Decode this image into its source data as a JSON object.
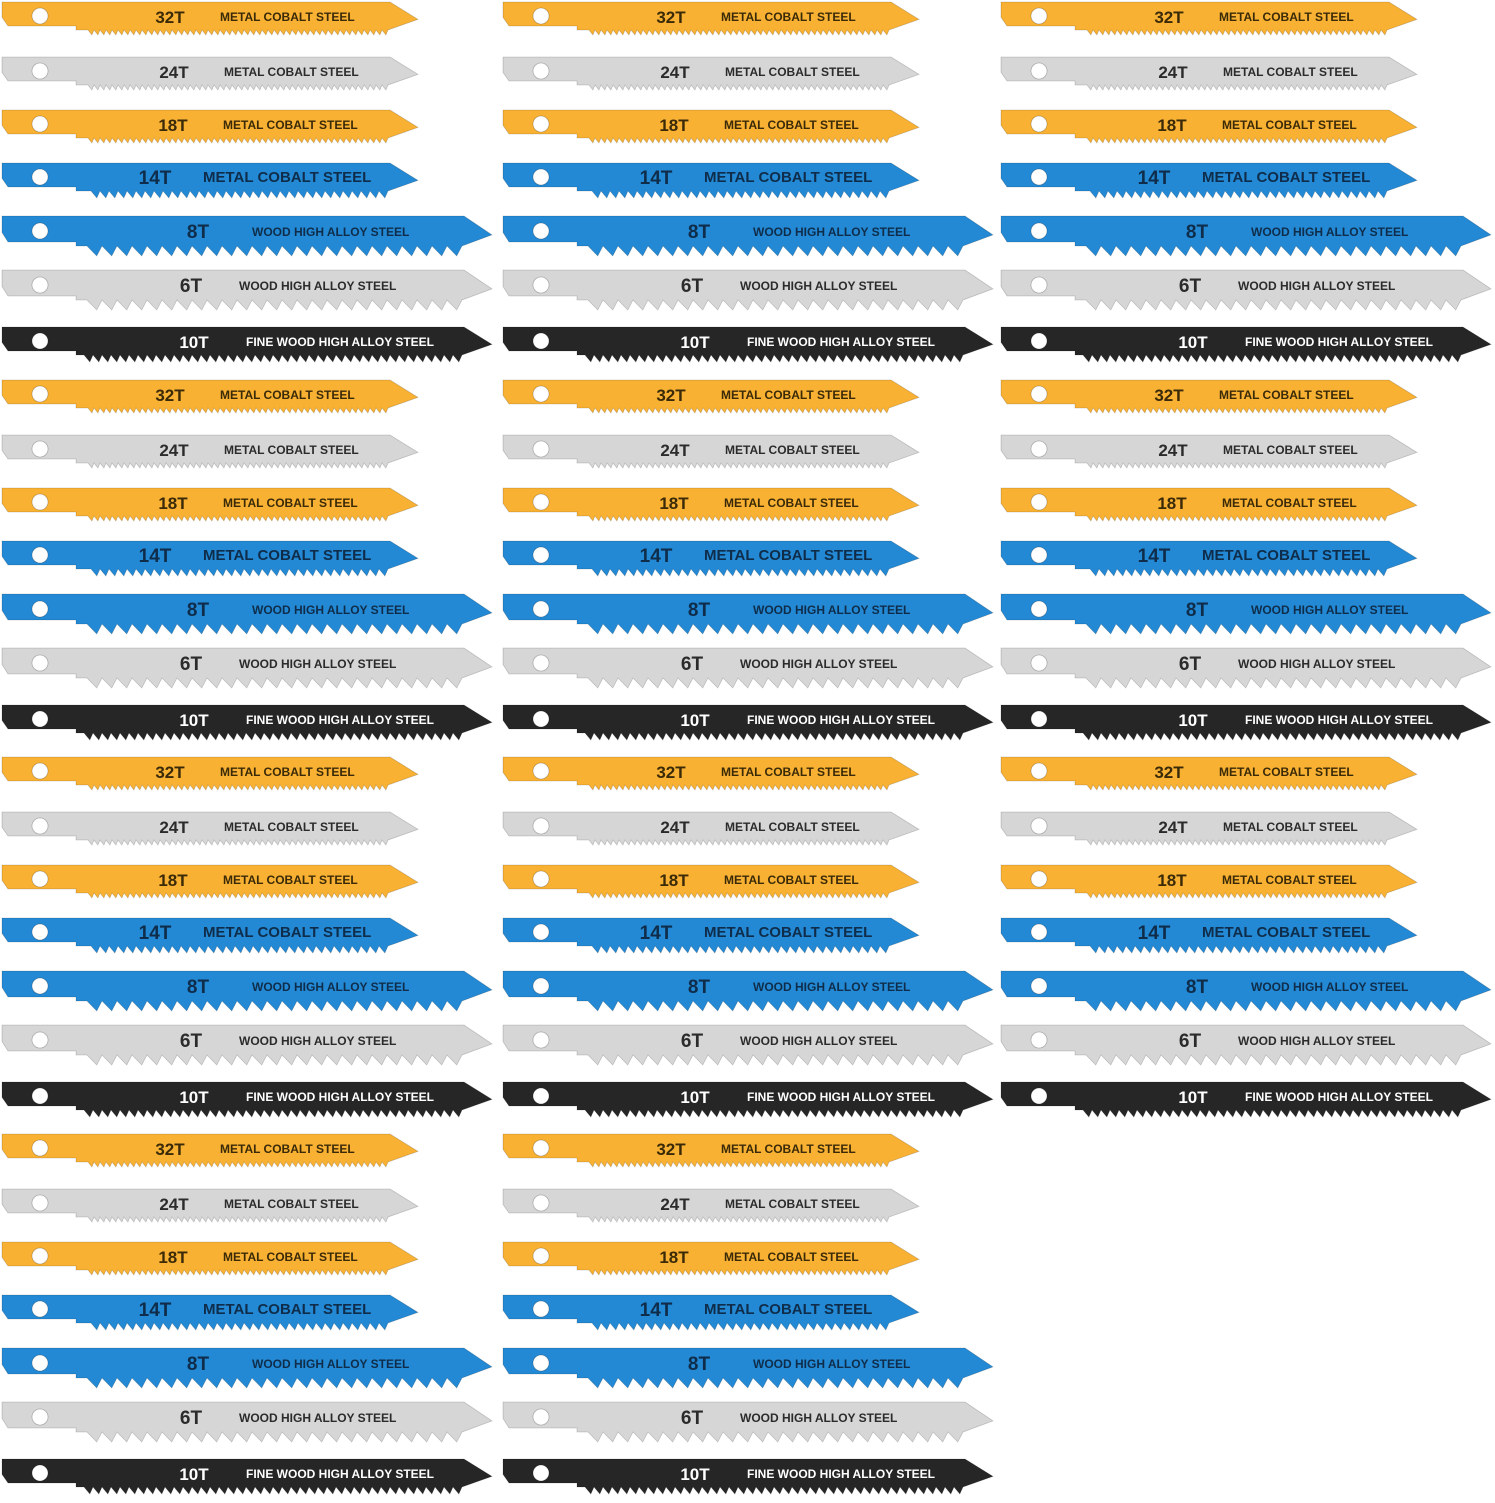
{
  "blade_types": {
    "m32": {
      "tpi": "32T",
      "desc": "METAL COBALT STEEL",
      "body": "#f8b133",
      "text": "#3a2a08",
      "hole": "#ffffff",
      "teeth": "fine"
    },
    "m24": {
      "tpi": "24T",
      "desc": "METAL COBALT STEEL",
      "body": "#d6d6d6",
      "text": "#2b2b2b",
      "hole": "#ffffff",
      "teeth": "fine"
    },
    "m18": {
      "tpi": "18T",
      "desc": "METAL COBALT STEEL",
      "body": "#f8b133",
      "text": "#3a2a08",
      "hole": "#ffffff",
      "teeth": "fine"
    },
    "m14": {
      "tpi": "14T",
      "desc": "METAL COBALT STEEL",
      "body": "#2389d4",
      "text": "#0f2d4a",
      "hole": "#ffffff",
      "teeth": "medium"
    },
    "w8": {
      "tpi": "8T",
      "desc": "WOOD  HIGH  ALLOY  STEEL",
      "body": "#2389d4",
      "text": "#0f2d4a",
      "hole": "#ffffff",
      "teeth": "coarse"
    },
    "w6": {
      "tpi": "6T",
      "desc": "WOOD  HIGH  ALLOY  STEEL",
      "body": "#d6d6d6",
      "text": "#2b2b2b",
      "hole": "#ffffff",
      "teeth": "coarse"
    },
    "f10": {
      "tpi": "10T",
      "desc": "FINE WOOD HIGH ALLOY STEEL",
      "body": "#262626",
      "text": "#ffffff",
      "hole": "#ffffff",
      "teeth": "medium"
    }
  },
  "groups": [
    {
      "column": 1,
      "blades": [
        "m32",
        "m24",
        "m18",
        "m14",
        "w8",
        "w6",
        "f10"
      ]
    },
    {
      "column": 2,
      "blades": [
        "m32",
        "m24",
        "m18",
        "m14",
        "w8",
        "w6",
        "f10"
      ]
    },
    {
      "column": 3,
      "blades": [
        "m32",
        "m24",
        "m18",
        "m14",
        "w8",
        "w6",
        "f10"
      ]
    },
    {
      "column": 1,
      "blades": [
        "m32",
        "m24",
        "m18",
        "m14",
        "w8",
        "w6",
        "f10"
      ]
    },
    {
      "column": 2,
      "blades": [
        "m32",
        "m24",
        "m18",
        "m14",
        "w8",
        "w6",
        "f10"
      ]
    },
    {
      "column": 3,
      "blades": [
        "m32",
        "m24",
        "m18",
        "m14",
        "w8",
        "w6",
        "f10"
      ]
    },
    {
      "column": 1,
      "blades": [
        "m32",
        "m24",
        "m18",
        "m14",
        "w8",
        "w6",
        "f10"
      ]
    },
    {
      "column": 2,
      "blades": [
        "m32",
        "m24",
        "m18",
        "m14",
        "w8",
        "w6",
        "f10"
      ]
    },
    {
      "column": 3,
      "blades": [
        "m32",
        "m24",
        "m18",
        "m14",
        "w8",
        "w6",
        "f10"
      ]
    },
    {
      "column": 1,
      "blades": [
        "m32",
        "m24",
        "m18",
        "m14",
        "w8",
        "w6",
        "f10"
      ]
    },
    {
      "column": 2,
      "blades": [
        "m32",
        "m24",
        "m18",
        "m14",
        "w8",
        "w6",
        "f10"
      ]
    }
  ]
}
